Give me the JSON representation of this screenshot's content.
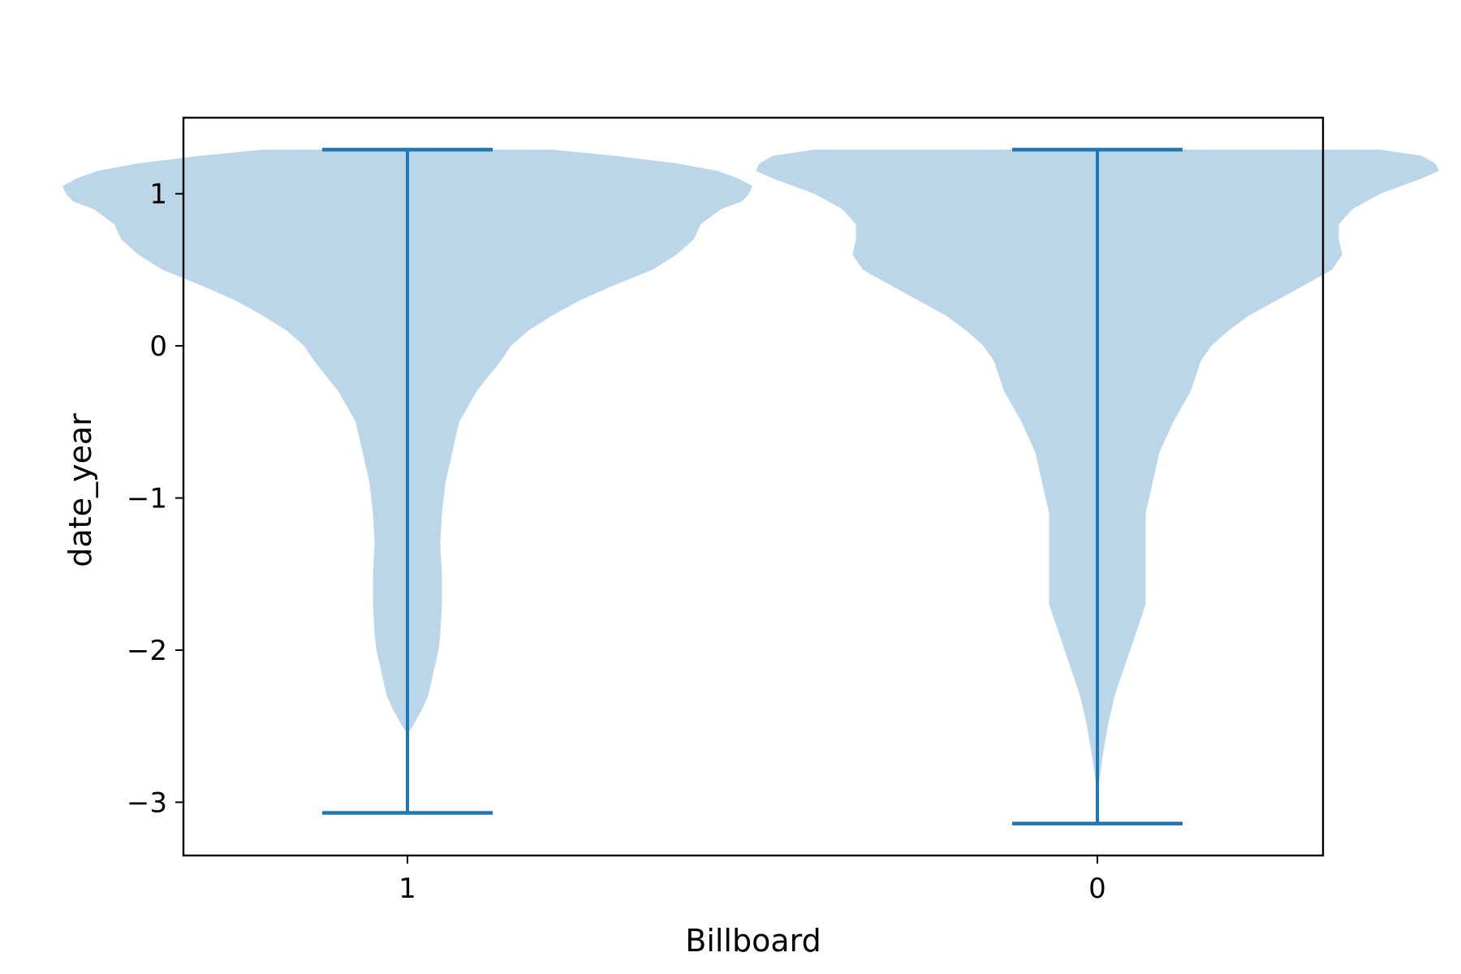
{
  "chart_data": {
    "type": "violin",
    "title": "",
    "xlabel": "Billboard",
    "ylabel": "date_year",
    "categories": [
      "1",
      "0"
    ],
    "ylim": [
      -3.35,
      1.5
    ],
    "yticks": [
      {
        "value": 1,
        "label": "1"
      },
      {
        "value": 0,
        "label": "0"
      },
      {
        "value": -1,
        "label": "−1"
      },
      {
        "value": -2,
        "label": "−2"
      },
      {
        "value": -3,
        "label": "−3"
      }
    ],
    "colors": {
      "fill": "#bbd6e8",
      "line": "#1f77b4",
      "axes": "#000000"
    },
    "grid": false,
    "series": [
      {
        "category": "1",
        "min": -3.07,
        "max": 1.29,
        "density_profile": [
          [
            1.29,
            0.42
          ],
          [
            1.25,
            0.6
          ],
          [
            1.2,
            0.78
          ],
          [
            1.15,
            0.9
          ],
          [
            1.1,
            0.96
          ],
          [
            1.05,
            1.0
          ],
          [
            1.0,
            0.99
          ],
          [
            0.95,
            0.97
          ],
          [
            0.9,
            0.91
          ],
          [
            0.8,
            0.85
          ],
          [
            0.7,
            0.83
          ],
          [
            0.6,
            0.78
          ],
          [
            0.5,
            0.71
          ],
          [
            0.4,
            0.6
          ],
          [
            0.3,
            0.5
          ],
          [
            0.2,
            0.42
          ],
          [
            0.1,
            0.35
          ],
          [
            0.0,
            0.3
          ],
          [
            -0.1,
            0.27
          ],
          [
            -0.3,
            0.2
          ],
          [
            -0.5,
            0.15
          ],
          [
            -0.6,
            0.14
          ],
          [
            -0.7,
            0.13
          ],
          [
            -0.9,
            0.11
          ],
          [
            -1.1,
            0.1
          ],
          [
            -1.3,
            0.095
          ],
          [
            -1.5,
            0.1
          ],
          [
            -1.7,
            0.1
          ],
          [
            -1.9,
            0.095
          ],
          [
            -2.0,
            0.09
          ],
          [
            -2.2,
            0.07
          ],
          [
            -2.3,
            0.06
          ],
          [
            -2.4,
            0.04
          ],
          [
            -2.5,
            0.015
          ],
          [
            -2.55,
            0.0
          ]
        ]
      },
      {
        "category": "0",
        "min": -3.14,
        "max": 1.29,
        "density_profile": [
          [
            1.29,
            0.82
          ],
          [
            1.25,
            0.94
          ],
          [
            1.2,
            0.98
          ],
          [
            1.15,
            0.99
          ],
          [
            1.1,
            0.94
          ],
          [
            1.0,
            0.82
          ],
          [
            0.9,
            0.74
          ],
          [
            0.8,
            0.7
          ],
          [
            0.7,
            0.7
          ],
          [
            0.6,
            0.71
          ],
          [
            0.5,
            0.68
          ],
          [
            0.4,
            0.6
          ],
          [
            0.3,
            0.52
          ],
          [
            0.2,
            0.44
          ],
          [
            0.1,
            0.38
          ],
          [
            0.0,
            0.33
          ],
          [
            -0.1,
            0.3
          ],
          [
            -0.3,
            0.27
          ],
          [
            -0.5,
            0.22
          ],
          [
            -0.7,
            0.18
          ],
          [
            -0.9,
            0.16
          ],
          [
            -1.1,
            0.14
          ],
          [
            -1.3,
            0.14
          ],
          [
            -1.5,
            0.14
          ],
          [
            -1.7,
            0.14
          ],
          [
            -1.9,
            0.11
          ],
          [
            -2.1,
            0.08
          ],
          [
            -2.3,
            0.05
          ],
          [
            -2.5,
            0.03
          ],
          [
            -2.7,
            0.015
          ],
          [
            -2.9,
            0.003
          ],
          [
            -3.0,
            0.0
          ]
        ]
      }
    ]
  }
}
